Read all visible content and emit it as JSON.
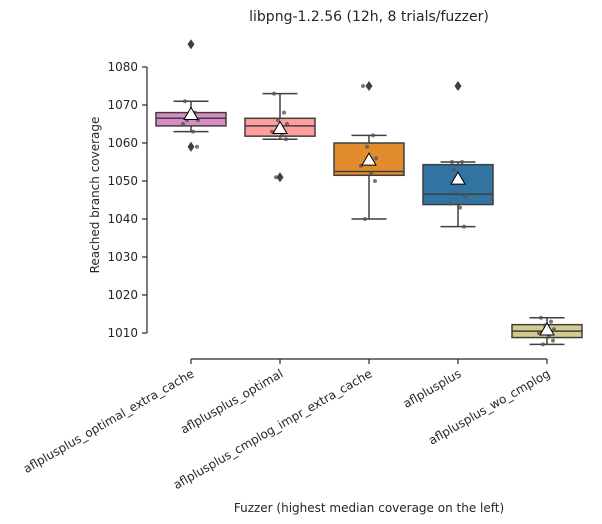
{
  "chart_data": {
    "type": "box",
    "title": "libpng-1.2.56 (12h, 8 trials/fuzzer)",
    "xlabel": "Fuzzer (highest median coverage on the left)",
    "ylabel": "Reached branch coverage",
    "ylim": [
      1005,
      1090
    ],
    "yticks": [
      1010,
      1020,
      1030,
      1040,
      1050,
      1060,
      1070,
      1080
    ],
    "categories": [
      "aflplusplus_optimal_extra_cache",
      "aflplusplus_optimal",
      "aflplusplus_cmplog_impr_extra_cache",
      "aflplusplus",
      "aflplusplus_wo_cmplog"
    ],
    "colors": [
      "#da8bc3",
      "#ff9f9b",
      "#e38c2d",
      "#3274a1",
      "#d2cb8e"
    ],
    "boxes": [
      {
        "whisker_low": 1063,
        "q1": 1064.5,
        "median": 1066.5,
        "q3": 1068,
        "whisker_high": 1071,
        "mean": 1067.5,
        "outliers": [
          1086,
          1059
        ],
        "points": [
          1071,
          1068,
          1067,
          1066,
          1065,
          1063,
          1059,
          1066
        ]
      },
      {
        "whisker_low": 1061,
        "q1": 1061.8,
        "median": 1064.5,
        "q3": 1066.5,
        "whisker_high": 1073,
        "mean": 1063.8,
        "outliers": [
          1051
        ],
        "points": [
          1073,
          1068,
          1066,
          1065,
          1063,
          1062,
          1061,
          1051
        ]
      },
      {
        "whisker_low": 1040,
        "q1": 1051.5,
        "median": 1052.5,
        "q3": 1060,
        "whisker_high": 1062,
        "mean": 1055.5,
        "outliers": [
          1075
        ],
        "points": [
          1075,
          1062,
          1059,
          1056,
          1054,
          1052,
          1050,
          1040
        ]
      },
      {
        "whisker_low": 1038,
        "q1": 1043.8,
        "median": 1046.5,
        "q3": 1054.3,
        "whisker_high": 1055,
        "mean": 1050.5,
        "outliers": [
          1075
        ],
        "points": [
          1055,
          1055,
          1047,
          1046,
          1044,
          1043,
          1038,
          1053
        ]
      },
      {
        "whisker_low": 1007,
        "q1": 1008.8,
        "median": 1010.5,
        "q3": 1012.2,
        "whisker_high": 1014,
        "mean": 1010.8,
        "outliers": [],
        "points": [
          1014,
          1013,
          1012,
          1011,
          1010,
          1009,
          1008,
          1007
        ]
      }
    ]
  }
}
